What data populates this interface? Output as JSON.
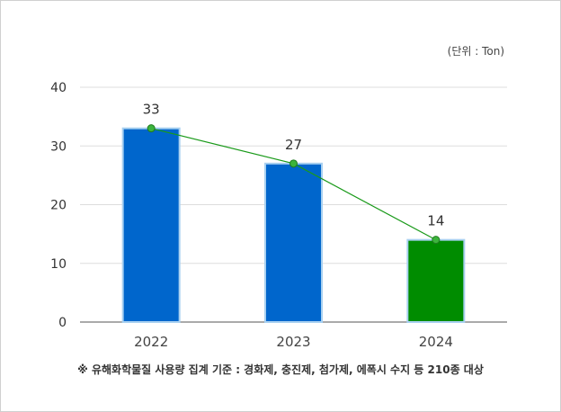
{
  "unit_label": "(단위 : Ton)",
  "footnote": "※ 유해화학물질 사용량 집계 기준 : 경화제, 충진제, 첨가제, 에폭시 수지 등 210종 대상",
  "chart_data": {
    "type": "bar",
    "categories": [
      "2022",
      "2023",
      "2024"
    ],
    "values": [
      33,
      27,
      14
    ],
    "data_labels": [
      "33",
      "27",
      "14"
    ],
    "ylim": [
      0,
      40
    ],
    "yticks": [
      0,
      10,
      20,
      30,
      40
    ],
    "ytick_labels": [
      "0",
      "10",
      "20",
      "30",
      "40"
    ],
    "bar_colors": [
      "#0066cc",
      "#0066cc",
      "#008c00"
    ],
    "trend_line": true,
    "trend_color": "#1a9a1a",
    "grid": true
  }
}
